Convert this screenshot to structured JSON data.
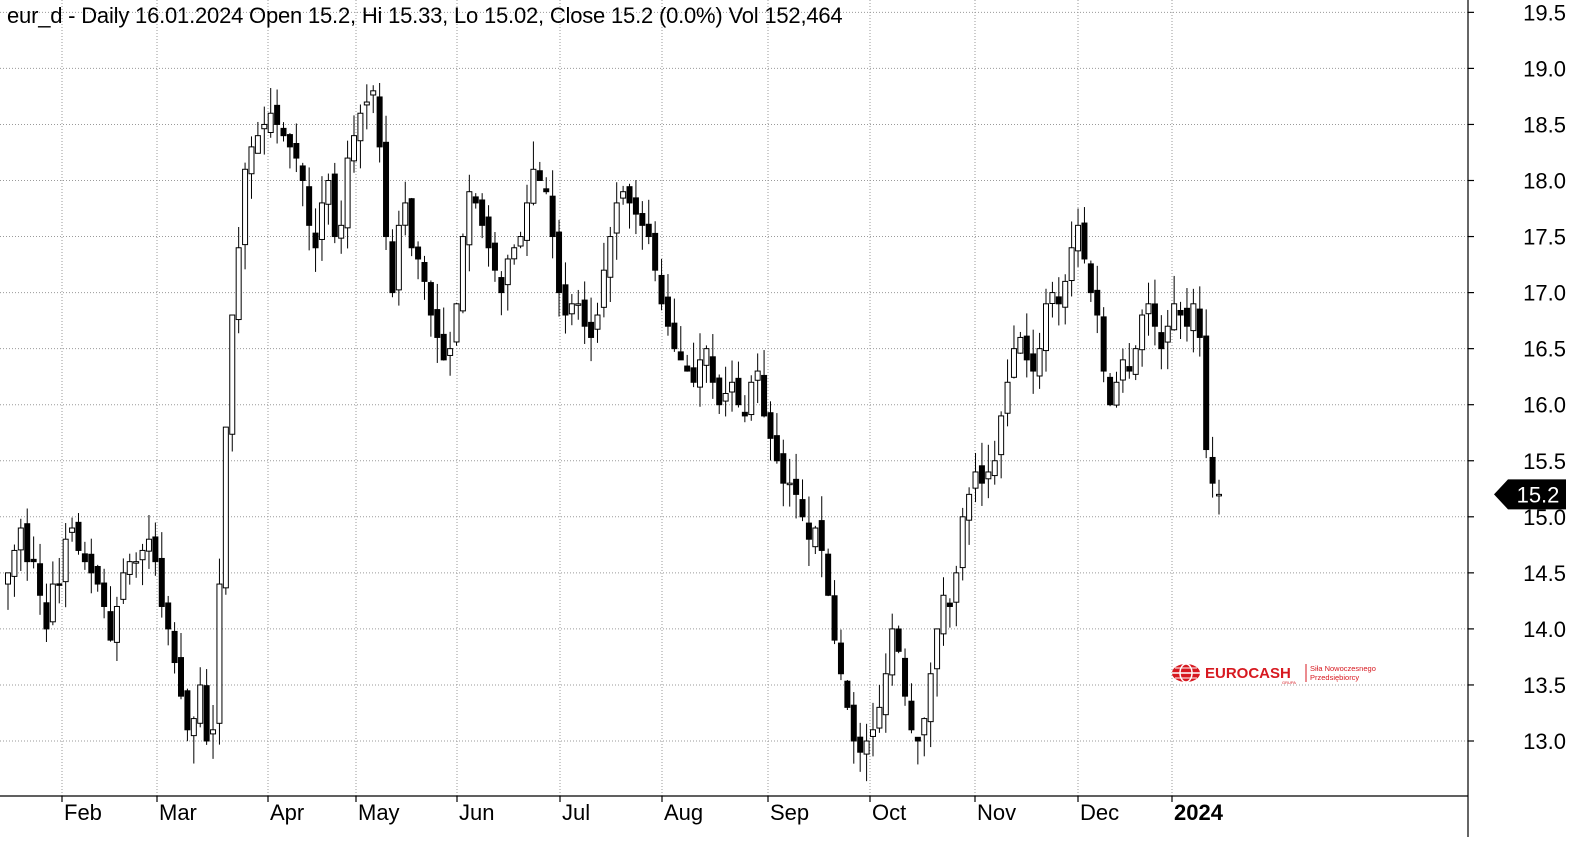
{
  "header": {
    "title": "eur_d - Daily 16.01.2024 Open 15.2, Hi 15.33, Lo 15.02, Close 15.2 (0.0%) Vol 152,464"
  },
  "logo": {
    "brand": "EUROCASH",
    "sub": "GRUPA",
    "tagline_1": "Siła Nowoczesnego",
    "tagline_2": "Przedsiębiorcy",
    "color": "#d71920"
  },
  "chart_data": {
    "type": "candlestick",
    "ticker": "eur_d",
    "period": "Daily",
    "last": {
      "date": "16.01.2024",
      "open": 15.2,
      "high": 15.33,
      "low": 15.02,
      "close": 15.2,
      "change": "(0.0%)",
      "volume": "152,464"
    },
    "last_price_label": "15.2",
    "y_ticks": [
      "13.0",
      "13.5",
      "14.0",
      "14.5",
      "15.0",
      "15.5",
      "16.0",
      "16.5",
      "17.0",
      "17.5",
      "18.0",
      "18.5",
      "19.0",
      "19.5"
    ],
    "ylim": [
      12.5,
      19.6
    ],
    "x_ticks": [
      "Feb",
      "Mar",
      "Apr",
      "May",
      "Jun",
      "Jul",
      "Aug",
      "Sep",
      "Oct",
      "Nov",
      "Dec",
      "2024"
    ],
    "grid": true,
    "colors": {
      "up": "#ffffff",
      "down": "#000000",
      "wick": "#000000"
    },
    "close_path": [
      14.5,
      14.7,
      14.9,
      14.6,
      14.6,
      14.3,
      14.0,
      14.4,
      14.4,
      14.8,
      14.9,
      14.7,
      14.6,
      14.5,
      14.4,
      14.2,
      13.9,
      14.2,
      14.5,
      14.6,
      14.6,
      14.7,
      14.8,
      14.6,
      14.2,
      14.0,
      13.7,
      13.4,
      13.1,
      13.2,
      13.5,
      13.0,
      13.1,
      14.4,
      15.8,
      16.8,
      17.4,
      18.1,
      18.3,
      18.4,
      18.5,
      18.6,
      18.5,
      18.4,
      18.3,
      18.2,
      18.0,
      17.6,
      17.4,
      17.8,
      18.0,
      17.5,
      17.6,
      18.2,
      18.4,
      18.6,
      18.7,
      18.8,
      18.3,
      17.5,
      17.0,
      17.6,
      17.8,
      17.4,
      17.3,
      17.1,
      16.8,
      16.6,
      16.4,
      16.5,
      16.9,
      17.5,
      17.9,
      17.8,
      17.6,
      17.4,
      17.2,
      17.0,
      17.3,
      17.4,
      17.5,
      17.8,
      18.1,
      18.0,
      17.9,
      17.5,
      17.0,
      16.8,
      16.9,
      16.9,
      16.7,
      16.6,
      16.8,
      17.2,
      17.5,
      17.8,
      17.9,
      17.8,
      17.7,
      17.6,
      17.5,
      17.2,
      16.9,
      16.7,
      16.5,
      16.4,
      16.3,
      16.2,
      16.4,
      16.5,
      16.2,
      16.0,
      16.1,
      16.2,
      16.0,
      15.9,
      16.2,
      16.3,
      15.9,
      15.7,
      15.5,
      15.3,
      15.3,
      15.2,
      15.0,
      14.8,
      14.9,
      14.7,
      14.3,
      13.9,
      13.6,
      13.3,
      13.0,
      12.9,
      13.0,
      13.1,
      13.3,
      13.6,
      14.0,
      13.8,
      13.4,
      13.1,
      13.0,
      13.2,
      13.6,
      14.0,
      14.3,
      14.2,
      14.5,
      15.0,
      15.2,
      15.4,
      15.3,
      15.4,
      15.5,
      15.9,
      16.2,
      16.5,
      16.6,
      16.4,
      16.3,
      16.5,
      16.9,
      17.0,
      16.9,
      17.1,
      17.4,
      17.6,
      17.3,
      17.0,
      16.8,
      16.3,
      16.0,
      16.2,
      16.4,
      16.3,
      16.5,
      16.8,
      16.9,
      16.7,
      16.5,
      16.7,
      16.9,
      16.8,
      16.7,
      16.9,
      16.6,
      15.6,
      15.3,
      15.2
    ]
  }
}
